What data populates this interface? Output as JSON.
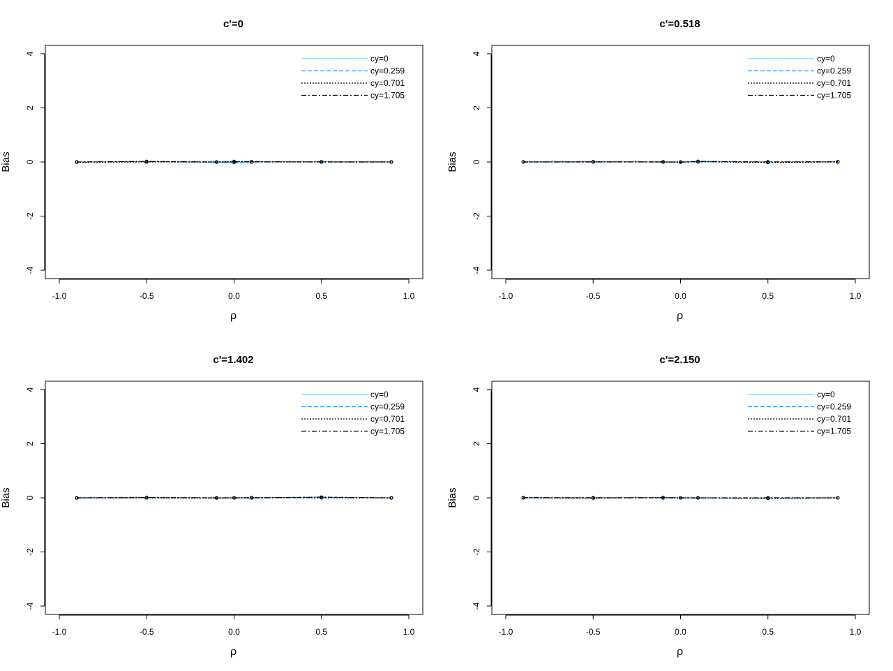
{
  "chart_data": [
    {
      "type": "line",
      "title": "c'=0",
      "xlabel": "ρ",
      "ylabel": "Bias",
      "xlim": [
        -1.0,
        1.0
      ],
      "ylim": [
        -4,
        4
      ],
      "xticks": [
        "-1.0",
        "-0.5",
        "0.0",
        "0.5",
        "1.0"
      ],
      "yticks": [
        "-4",
        "-2",
        "0",
        "2",
        "4"
      ],
      "x": [
        -0.9,
        -0.5,
        -0.1,
        0.0,
        0.1,
        0.5,
        0.9
      ],
      "legend_position": "top-right",
      "series": [
        {
          "name": "cy=0",
          "values": [
            0.0,
            0.02,
            -0.02,
            0.0,
            0.01,
            0.02,
            0.01
          ],
          "color": "#87CEEB",
          "dash": "solid"
        },
        {
          "name": "cy=0.259",
          "values": [
            0.0,
            0.01,
            0.0,
            -0.03,
            0.0,
            0.01,
            0.0
          ],
          "color": "#1E90FF",
          "dash": "dashed"
        },
        {
          "name": "cy=0.701",
          "values": [
            -0.01,
            0.0,
            0.0,
            0.02,
            0.0,
            0.0,
            0.0
          ],
          "color": "#000000",
          "dash": "dotted"
        },
        {
          "name": "cy=1.705",
          "values": [
            0.0,
            0.02,
            0.0,
            0.0,
            0.01,
            0.0,
            0.0
          ],
          "color": "#000000",
          "dash": "dotdash"
        }
      ]
    },
    {
      "type": "line",
      "title": "c'=0.518",
      "xlabel": "ρ",
      "ylabel": "Bias",
      "xlim": [
        -1.0,
        1.0
      ],
      "ylim": [
        -4,
        4
      ],
      "xticks": [
        "-1.0",
        "-0.5",
        "0.0",
        "0.5",
        "1.0"
      ],
      "yticks": [
        "-4",
        "-2",
        "0",
        "2",
        "4"
      ],
      "x": [
        -0.9,
        -0.5,
        -0.1,
        0.0,
        0.1,
        0.5,
        0.9
      ],
      "legend_position": "top-right",
      "series": [
        {
          "name": "cy=0",
          "values": [
            0.01,
            0.01,
            0.0,
            0.0,
            0.03,
            0.0,
            0.01
          ],
          "color": "#87CEEB",
          "dash": "solid"
        },
        {
          "name": "cy=0.259",
          "values": [
            0.0,
            0.0,
            0.01,
            0.0,
            0.0,
            0.01,
            0.0
          ],
          "color": "#1E90FF",
          "dash": "dashed"
        },
        {
          "name": "cy=0.701",
          "values": [
            0.0,
            0.01,
            0.0,
            -0.01,
            0.01,
            -0.02,
            0.0
          ],
          "color": "#000000",
          "dash": "dotted"
        },
        {
          "name": "cy=1.705",
          "values": [
            0.0,
            0.0,
            0.0,
            0.0,
            0.02,
            0.0,
            0.01
          ],
          "color": "#000000",
          "dash": "dotdash"
        }
      ]
    },
    {
      "type": "line",
      "title": "c'=1.402",
      "xlabel": "ρ",
      "ylabel": "Bias",
      "xlim": [
        -1.0,
        1.0
      ],
      "ylim": [
        -4,
        4
      ],
      "xticks": [
        "-1.0",
        "-0.5",
        "0.0",
        "0.5",
        "1.0"
      ],
      "yticks": [
        "-4",
        "-2",
        "0",
        "2",
        "4"
      ],
      "x": [
        -0.9,
        -0.5,
        -0.1,
        0.0,
        0.1,
        0.5,
        0.9
      ],
      "legend_position": "top-right",
      "series": [
        {
          "name": "cy=0",
          "values": [
            0.0,
            0.02,
            0.0,
            0.0,
            -0.01,
            0.02,
            0.0
          ],
          "color": "#87CEEB",
          "dash": "solid"
        },
        {
          "name": "cy=0.259",
          "values": [
            -0.01,
            0.01,
            0.0,
            0.0,
            0.0,
            0.03,
            -0.01
          ],
          "color": "#1E90FF",
          "dash": "dashed"
        },
        {
          "name": "cy=0.701",
          "values": [
            0.0,
            0.0,
            -0.01,
            0.0,
            0.01,
            0.0,
            0.0
          ],
          "color": "#000000",
          "dash": "dotted"
        },
        {
          "name": "cy=1.705",
          "values": [
            0.0,
            0.01,
            0.0,
            0.0,
            0.0,
            0.02,
            0.0
          ],
          "color": "#000000",
          "dash": "dotdash"
        }
      ]
    },
    {
      "type": "line",
      "title": "c'=2.150",
      "xlabel": "ρ",
      "ylabel": "Bias",
      "xlim": [
        -1.0,
        1.0
      ],
      "ylim": [
        -4,
        4
      ],
      "xticks": [
        "-1.0",
        "-0.5",
        "0.0",
        "0.5",
        "1.0"
      ],
      "yticks": [
        "-4",
        "-2",
        "0",
        "2",
        "4"
      ],
      "x": [
        -0.9,
        -0.5,
        -0.1,
        0.0,
        0.1,
        0.5,
        0.9
      ],
      "legend_position": "top-right",
      "series": [
        {
          "name": "cy=0",
          "values": [
            0.0,
            0.0,
            0.02,
            0.0,
            0.0,
            -0.01,
            0.0
          ],
          "color": "#87CEEB",
          "dash": "solid"
        },
        {
          "name": "cy=0.259",
          "values": [
            0.0,
            0.01,
            0.0,
            0.0,
            -0.01,
            0.0,
            0.0
          ],
          "color": "#1E90FF",
          "dash": "dashed"
        },
        {
          "name": "cy=0.701",
          "values": [
            0.0,
            -0.01,
            0.01,
            0.0,
            0.0,
            -0.02,
            0.0
          ],
          "color": "#000000",
          "dash": "dotted"
        },
        {
          "name": "cy=1.705",
          "values": [
            0.01,
            0.0,
            0.0,
            0.0,
            0.0,
            0.0,
            0.0
          ],
          "color": "#000000",
          "dash": "dotdash"
        }
      ]
    }
  ]
}
